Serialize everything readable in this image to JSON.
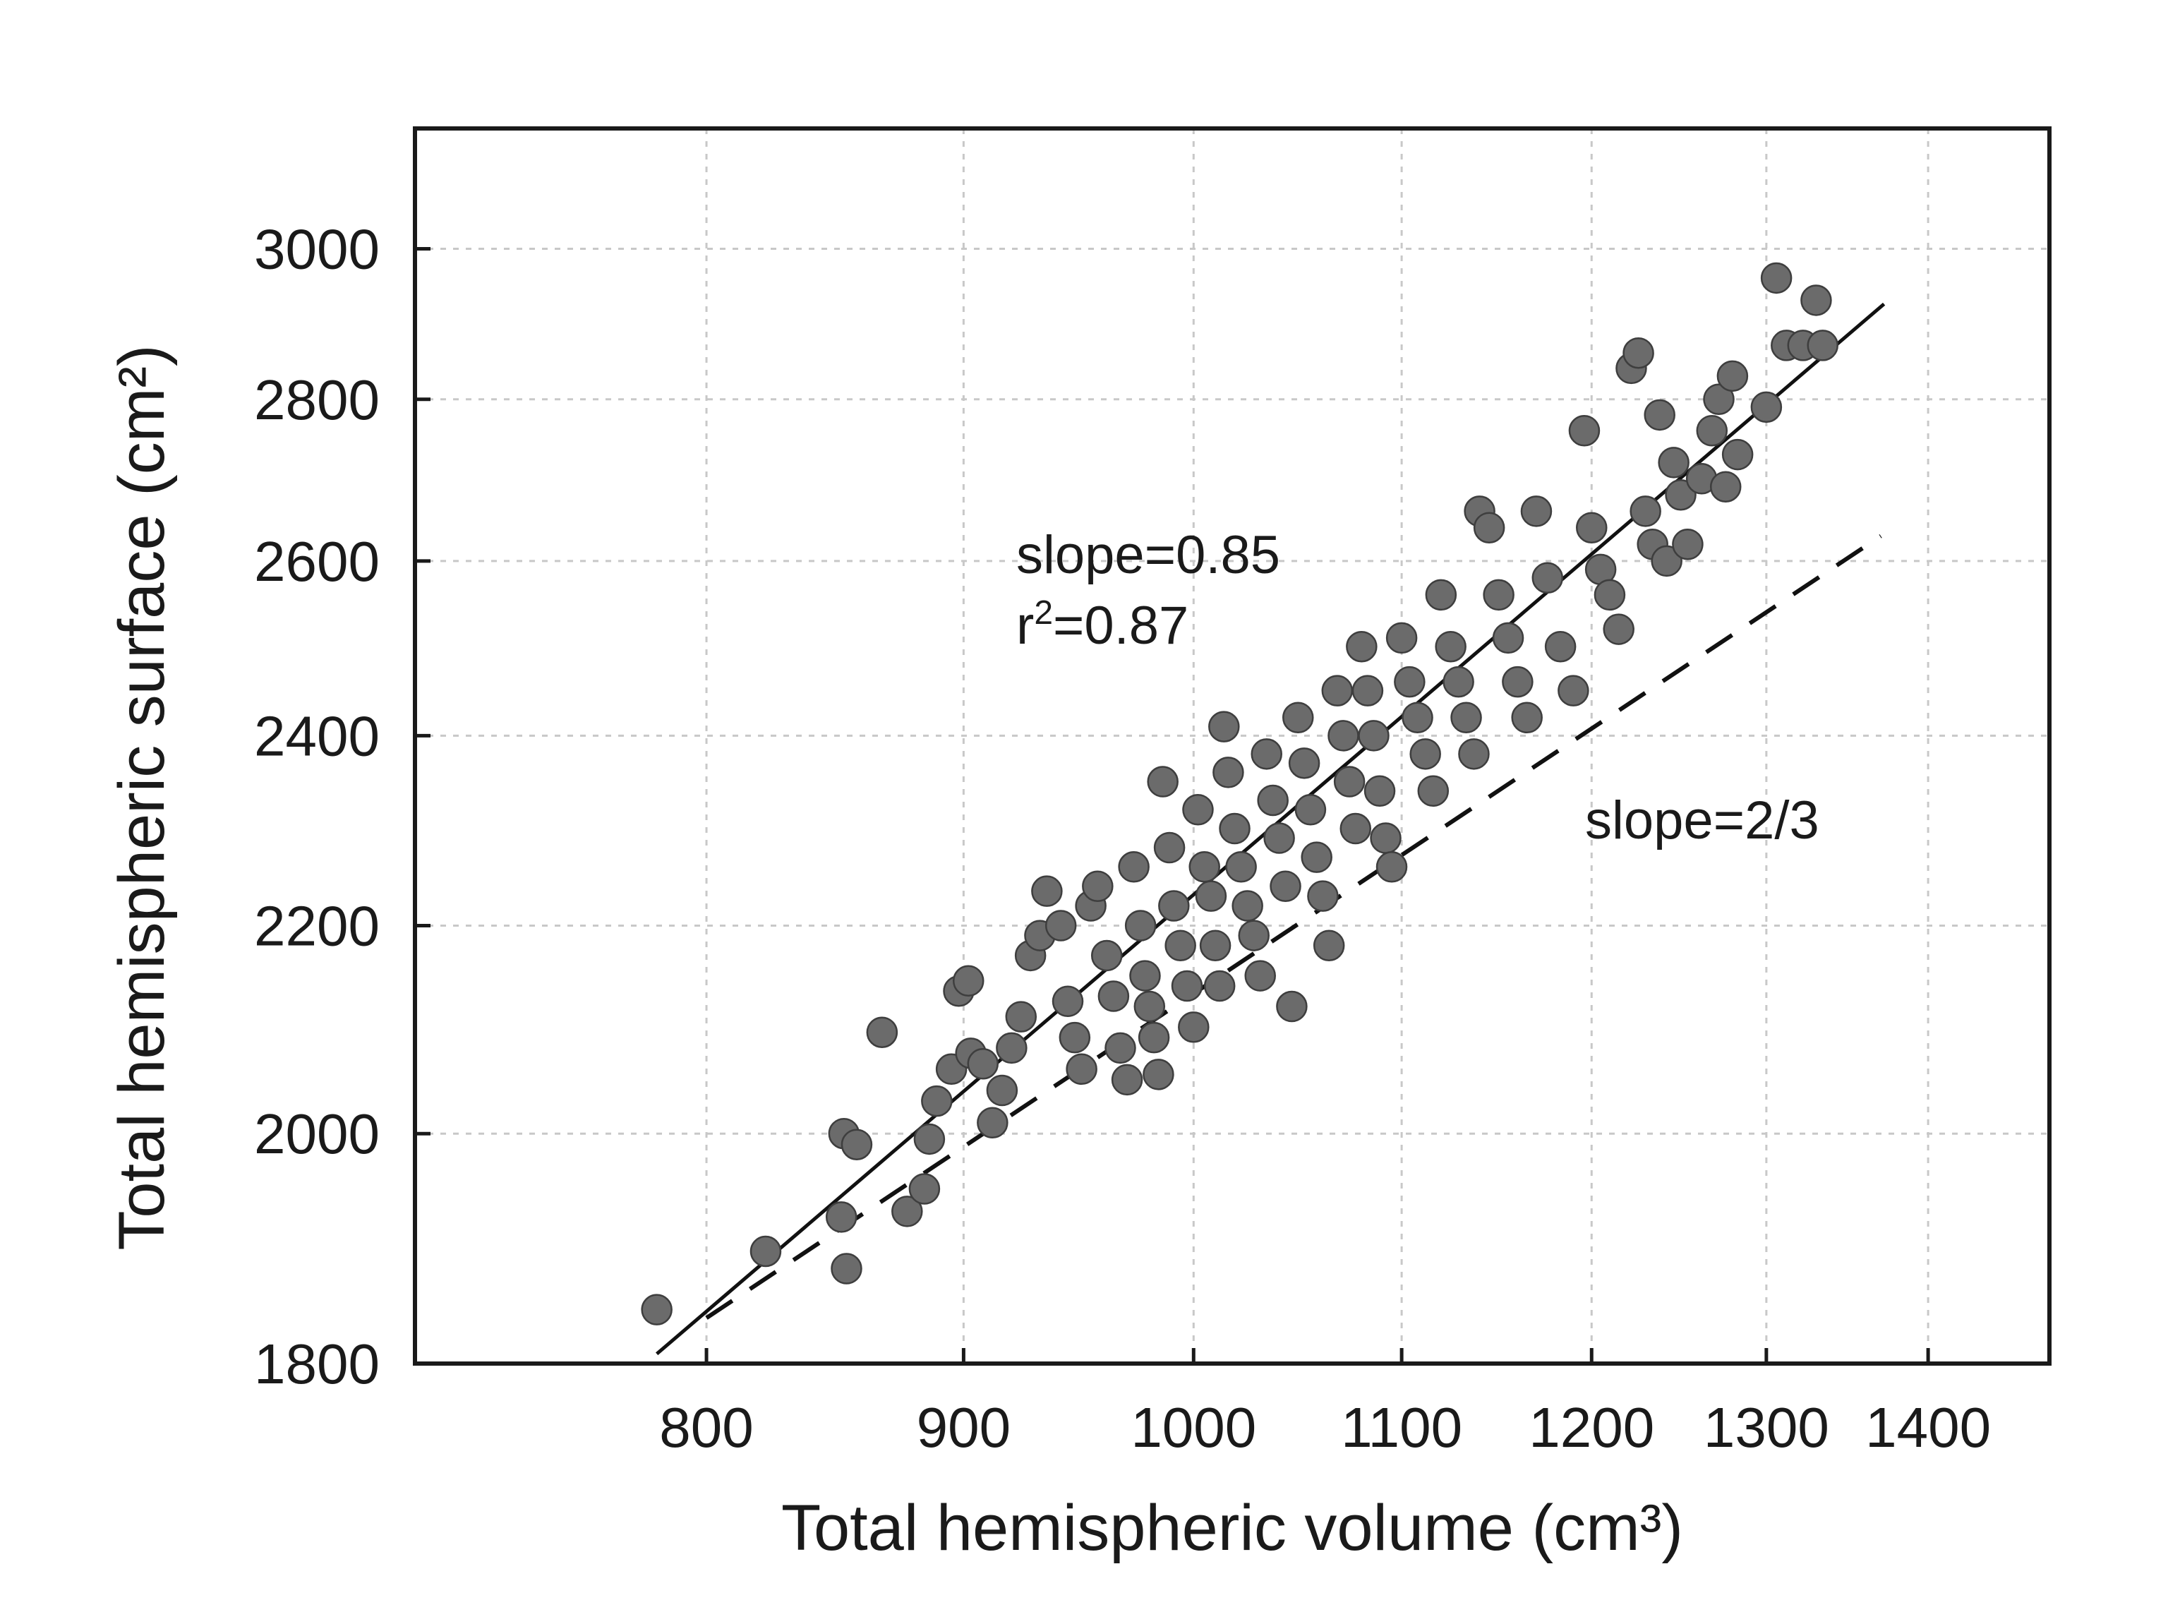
{
  "chart_data": {
    "type": "scatter",
    "title": "",
    "xlabel": "Total hemispheric volume (cm³)",
    "ylabel": "Total hemispheric surface (cm²)",
    "x_scale": "log",
    "y_scale": "log",
    "xlim": [
      700,
      1480
    ],
    "ylim": [
      1800,
      3170
    ],
    "x_ticks": [
      800,
      900,
      1000,
      1100,
      1200,
      1300,
      1400
    ],
    "y_ticks": [
      1800,
      2000,
      2200,
      2400,
      2600,
      2800,
      3000
    ],
    "x_tick_labels": [
      "800",
      "900",
      "1000",
      "1100",
      "1200",
      "1300",
      "1400"
    ],
    "y_tick_labels": [
      "1800",
      "2000",
      "2200",
      "2400",
      "2600",
      "2800",
      "3000"
    ],
    "grid": true,
    "marker_color": "#6b6b6b",
    "points": [
      [
        782,
        1845
      ],
      [
        822,
        1895
      ],
      [
        853,
        1880
      ],
      [
        851,
        1925
      ],
      [
        852,
        2000
      ],
      [
        857,
        1990
      ],
      [
        867,
        2095
      ],
      [
        877,
        1930
      ],
      [
        884,
        1950
      ],
      [
        886,
        1995
      ],
      [
        889,
        2030
      ],
      [
        895,
        2060
      ],
      [
        898,
        2135
      ],
      [
        902,
        2145
      ],
      [
        903,
        2075
      ],
      [
        908,
        2065
      ],
      [
        912,
        2010
      ],
      [
        916,
        2040
      ],
      [
        920,
        2080
      ],
      [
        924,
        2110
      ],
      [
        928,
        2170
      ],
      [
        932,
        2190
      ],
      [
        935,
        2235
      ],
      [
        941,
        2200
      ],
      [
        944,
        2125
      ],
      [
        947,
        2090
      ],
      [
        950,
        2060
      ],
      [
        954,
        2220
      ],
      [
        957,
        2240
      ],
      [
        961,
        2170
      ],
      [
        964,
        2130
      ],
      [
        967,
        2080
      ],
      [
        970,
        2050
      ],
      [
        973,
        2260
      ],
      [
        976,
        2200
      ],
      [
        978,
        2150
      ],
      [
        980,
        2120
      ],
      [
        982,
        2090
      ],
      [
        984,
        2055
      ],
      [
        986,
        2350
      ],
      [
        989,
        2280
      ],
      [
        991,
        2220
      ],
      [
        994,
        2180
      ],
      [
        997,
        2140
      ],
      [
        1000,
        2100
      ],
      [
        1002,
        2320
      ],
      [
        1005,
        2260
      ],
      [
        1008,
        2230
      ],
      [
        1010,
        2180
      ],
      [
        1012,
        2140
      ],
      [
        1014,
        2410
      ],
      [
        1016,
        2360
      ],
      [
        1019,
        2300
      ],
      [
        1022,
        2260
      ],
      [
        1025,
        2220
      ],
      [
        1028,
        2190
      ],
      [
        1031,
        2150
      ],
      [
        1034,
        2380
      ],
      [
        1037,
        2330
      ],
      [
        1040,
        2290
      ],
      [
        1043,
        2240
      ],
      [
        1046,
        2120
      ],
      [
        1049,
        2420
      ],
      [
        1052,
        2370
      ],
      [
        1055,
        2320
      ],
      [
        1058,
        2270
      ],
      [
        1061,
        2230
      ],
      [
        1064,
        2180
      ],
      [
        1068,
        2450
      ],
      [
        1071,
        2400
      ],
      [
        1074,
        2350
      ],
      [
        1077,
        2300
      ],
      [
        1080,
        2500
      ],
      [
        1083,
        2450
      ],
      [
        1086,
        2400
      ],
      [
        1089,
        2340
      ],
      [
        1092,
        2290
      ],
      [
        1095,
        2260
      ],
      [
        1100,
        2510
      ],
      [
        1104,
        2460
      ],
      [
        1108,
        2420
      ],
      [
        1112,
        2380
      ],
      [
        1116,
        2340
      ],
      [
        1120,
        2560
      ],
      [
        1125,
        2500
      ],
      [
        1129,
        2460
      ],
      [
        1133,
        2420
      ],
      [
        1137,
        2380
      ],
      [
        1140,
        2660
      ],
      [
        1145,
        2640
      ],
      [
        1150,
        2560
      ],
      [
        1155,
        2510
      ],
      [
        1160,
        2460
      ],
      [
        1165,
        2420
      ],
      [
        1170,
        2660
      ],
      [
        1176,
        2580
      ],
      [
        1183,
        2500
      ],
      [
        1190,
        2450
      ],
      [
        1196,
        2760
      ],
      [
        1200,
        2640
      ],
      [
        1205,
        2590
      ],
      [
        1210,
        2560
      ],
      [
        1215,
        2520
      ],
      [
        1222,
        2840
      ],
      [
        1226,
        2860
      ],
      [
        1230,
        2660
      ],
      [
        1234,
        2620
      ],
      [
        1238,
        2780
      ],
      [
        1242,
        2600
      ],
      [
        1246,
        2720
      ],
      [
        1250,
        2680
      ],
      [
        1254,
        2620
      ],
      [
        1262,
        2700
      ],
      [
        1268,
        2760
      ],
      [
        1272,
        2800
      ],
      [
        1276,
        2690
      ],
      [
        1280,
        2830
      ],
      [
        1283,
        2730
      ],
      [
        1300,
        2790
      ],
      [
        1306,
        2960
      ],
      [
        1312,
        2870
      ],
      [
        1322,
        2870
      ],
      [
        1330,
        2930
      ],
      [
        1334,
        2870
      ]
    ],
    "lines": [
      {
        "name": "slope=0.85",
        "style": "solid",
        "x": [
          782,
          1372
        ],
        "y": [
          1808,
          2925
        ]
      },
      {
        "name": "slope=2/3",
        "style": "dashed",
        "x": [
          800,
          1370
        ],
        "y": [
          1838,
          2630
        ]
      }
    ],
    "annotations": {
      "fit_slope": "slope=0.85",
      "fit_r2_prefix": "r",
      "fit_r2_sup": "2",
      "fit_r2_value": "=0.87",
      "ref_slope": "slope=2/3"
    }
  }
}
